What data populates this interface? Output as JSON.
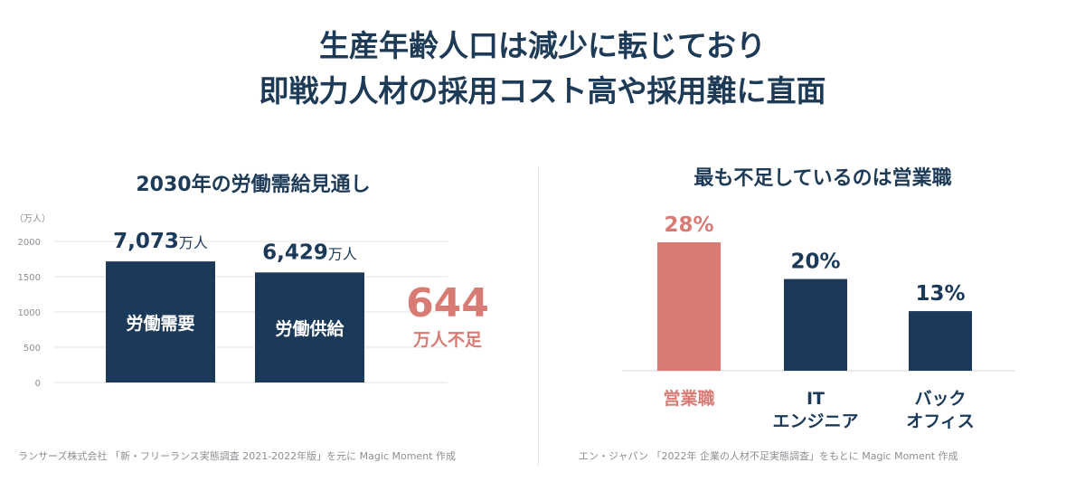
{
  "headline": {
    "line1": "生産年齢人口は減少に転じており",
    "line2": "即戦力人材の採用コスト高や採用難に直面"
  },
  "left": {
    "title": "2030年の労働需給見通し",
    "unit": "（万人）",
    "value_unit": "万人",
    "shortage_value": "644",
    "shortage_label": "万人不足",
    "source": "ランサーズ株式会社 「新・フリーランス実態調査 2021-2022年版」を元に Magic Moment 作成"
  },
  "right": {
    "title": "最も不足しているのは営業職",
    "source": "エン・ジャパン 「2022年 企業の人材不足実態調査」をもとに Magic Moment 作成"
  },
  "colors": {
    "navy": "#1b3a59",
    "highlight": "#d97b75",
    "grid": "#e3e3e3",
    "axis_text": "#8a8f95"
  },
  "chart_data": [
    {
      "type": "bar",
      "title": "2030年の労働需給見通し",
      "ylabel": "（万人）",
      "ylim": [
        0,
        2000
      ],
      "yticks": [
        0,
        500,
        1000,
        1500,
        2000
      ],
      "categories": [
        "労働需要",
        "労働供給"
      ],
      "values": [
        7073,
        6429
      ],
      "value_labels": [
        "7,073",
        "6,429"
      ],
      "annotation": {
        "value": "644",
        "label": "万人不足"
      },
      "grid": true
    },
    {
      "type": "bar",
      "title": "最も不足しているのは営業職",
      "categories": [
        [
          "営業職"
        ],
        [
          "IT",
          "エンジニア"
        ],
        [
          "バック",
          "オフィス"
        ]
      ],
      "values": [
        28,
        20,
        13
      ],
      "value_labels": [
        "28%",
        "20%",
        "13%"
      ],
      "highlight_index": 0,
      "grid": false
    }
  ]
}
